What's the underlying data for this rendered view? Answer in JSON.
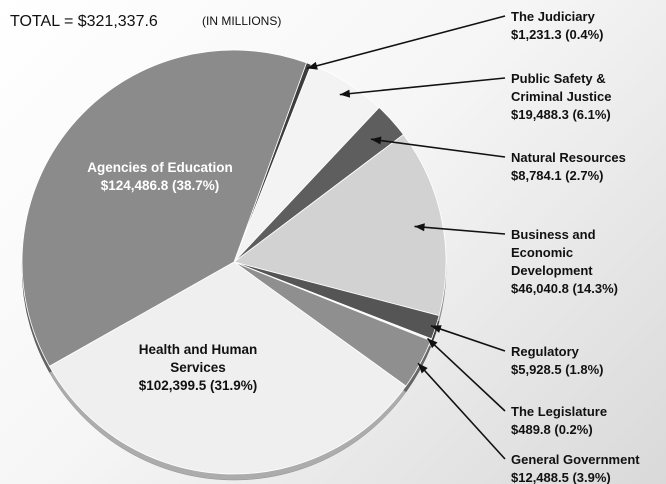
{
  "header": {
    "total_label": "TOTAL = $321,337.6",
    "units_label": "(IN MILLIONS)"
  },
  "chart_data": {
    "type": "pie",
    "title": "",
    "total": 321337.6,
    "units": "(IN MILLIONS)",
    "slices": [
      {
        "name": "The Judiciary",
        "value": 1231.3,
        "percent": 0.4,
        "color": "#3d3d3d",
        "label_lines": [
          "The Judiciary",
          "$1,231.3 (0.4%)"
        ]
      },
      {
        "name": "Public Safety & Criminal Justice",
        "value": 19488.3,
        "percent": 6.1,
        "color": "#f3f3f3",
        "label_lines": [
          "Public Safety &",
          "Criminal Justice",
          "$19,488.3 (6.1%)"
        ]
      },
      {
        "name": "Natural Resources",
        "value": 8784.1,
        "percent": 2.7,
        "color": "#5e5e5e",
        "label_lines": [
          "Natural Resources",
          "$8,784.1 (2.7%)"
        ]
      },
      {
        "name": "Business and Economic Development",
        "value": 46040.8,
        "percent": 14.3,
        "color": "#d2d2d2",
        "label_lines": [
          "Business and",
          "Economic",
          "Development",
          "$46,040.8 (14.3%)"
        ]
      },
      {
        "name": "Regulatory",
        "value": 5928.5,
        "percent": 1.8,
        "color": "#555555",
        "label_lines": [
          "Regulatory",
          "$5,928.5 (1.8%)"
        ]
      },
      {
        "name": "The Legislature",
        "value": 489.8,
        "percent": 0.2,
        "color": "#f7f7f7",
        "label_lines": [
          "The Legislature",
          "$489.8 (0.2%)"
        ]
      },
      {
        "name": "General Government",
        "value": 12488.5,
        "percent": 3.9,
        "color": "#8f8f8f",
        "label_lines": [
          "General Government",
          "$12,488.5 (3.9%)"
        ]
      },
      {
        "name": "Health and Human Services",
        "value": 102399.5,
        "percent": 31.9,
        "color": "#efefef",
        "label_lines": [
          "Health and Human",
          "Services",
          "$102,399.5 (31.9%)"
        ]
      },
      {
        "name": "Agencies of Education",
        "value": 124486.8,
        "percent": 38.7,
        "color": "#8b8b8b",
        "label_lines": [
          "Agencies of Education",
          "$124,486.8 (38.7%)"
        ]
      }
    ]
  }
}
